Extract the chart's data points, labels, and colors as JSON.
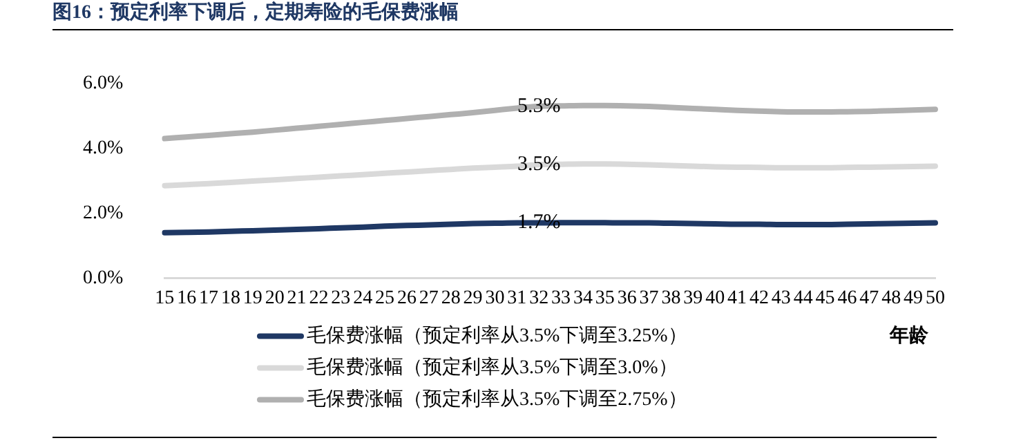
{
  "chart_data": {
    "type": "line",
    "title": "图16：预定利率下调后，定期寿险的毛保费涨幅",
    "xlabel": "年龄",
    "categories": [
      "15",
      "16",
      "17",
      "18",
      "19",
      "20",
      "21",
      "22",
      "23",
      "24",
      "25",
      "26",
      "27",
      "28",
      "29",
      "30",
      "31",
      "32",
      "33",
      "34",
      "35",
      "36",
      "37",
      "38",
      "39",
      "40",
      "41",
      "42",
      "43",
      "44",
      "45",
      "46",
      "47",
      "48",
      "49",
      "50"
    ],
    "series": [
      {
        "name": "毛保费涨幅（预定利率从3.5%下调至3.25%）",
        "color": "#1f3864",
        "values": [
          1.4,
          1.41,
          1.42,
          1.44,
          1.46,
          1.48,
          1.5,
          1.52,
          1.55,
          1.57,
          1.6,
          1.62,
          1.64,
          1.66,
          1.68,
          1.69,
          1.7,
          1.7,
          1.71,
          1.71,
          1.71,
          1.7,
          1.7,
          1.69,
          1.68,
          1.67,
          1.66,
          1.66,
          1.65,
          1.65,
          1.65,
          1.66,
          1.67,
          1.68,
          1.69,
          1.7
        ],
        "value_labels": [
          null,
          null,
          null,
          null,
          null,
          null,
          null,
          null,
          null,
          null,
          null,
          null,
          null,
          null,
          null,
          null,
          null,
          "1.7%",
          null,
          null,
          null,
          null,
          null,
          null,
          null,
          null,
          null,
          null,
          null,
          null,
          null,
          null,
          null,
          null,
          null,
          null
        ]
      },
      {
        "name": "毛保费涨幅（预定利率从3.5%下调至3.0%）",
        "color": "#d9d9d9",
        "values": [
          2.85,
          2.88,
          2.91,
          2.95,
          2.99,
          3.03,
          3.07,
          3.11,
          3.15,
          3.19,
          3.23,
          3.27,
          3.31,
          3.35,
          3.39,
          3.42,
          3.45,
          3.5,
          3.51,
          3.52,
          3.52,
          3.51,
          3.49,
          3.47,
          3.45,
          3.43,
          3.42,
          3.41,
          3.4,
          3.4,
          3.4,
          3.41,
          3.42,
          3.43,
          3.44,
          3.45
        ],
        "value_labels": [
          null,
          null,
          null,
          null,
          null,
          null,
          null,
          null,
          null,
          null,
          null,
          null,
          null,
          null,
          null,
          null,
          null,
          "3.5%",
          null,
          null,
          null,
          null,
          null,
          null,
          null,
          null,
          null,
          null,
          null,
          null,
          null,
          null,
          null,
          null,
          null,
          null
        ]
      },
      {
        "name": "毛保费涨幅（预定利率从3.5%下调至2.75%）",
        "color": "#b0b0b0",
        "values": [
          4.3,
          4.35,
          4.4,
          4.45,
          4.5,
          4.56,
          4.62,
          4.68,
          4.74,
          4.8,
          4.86,
          4.92,
          4.98,
          5.04,
          5.1,
          5.17,
          5.24,
          5.3,
          5.31,
          5.32,
          5.32,
          5.31,
          5.29,
          5.26,
          5.23,
          5.2,
          5.17,
          5.15,
          5.13,
          5.12,
          5.12,
          5.13,
          5.14,
          5.16,
          5.18,
          5.2
        ],
        "value_labels": [
          null,
          null,
          null,
          null,
          null,
          null,
          null,
          null,
          null,
          null,
          null,
          null,
          null,
          null,
          null,
          null,
          null,
          "5.3%",
          null,
          null,
          null,
          null,
          null,
          null,
          null,
          null,
          null,
          null,
          null,
          null,
          null,
          null,
          null,
          null,
          null,
          null
        ]
      }
    ],
    "ylim": [
      0,
      6
    ],
    "yticks": [
      {
        "value": 0,
        "label": "0.0%"
      },
      {
        "value": 2,
        "label": "2.0%"
      },
      {
        "value": 4,
        "label": "4.0%"
      },
      {
        "value": 6,
        "label": "6.0%"
      }
    ],
    "grid": false,
    "legend": "bottom",
    "marker": "none",
    "line_style": "solid"
  }
}
